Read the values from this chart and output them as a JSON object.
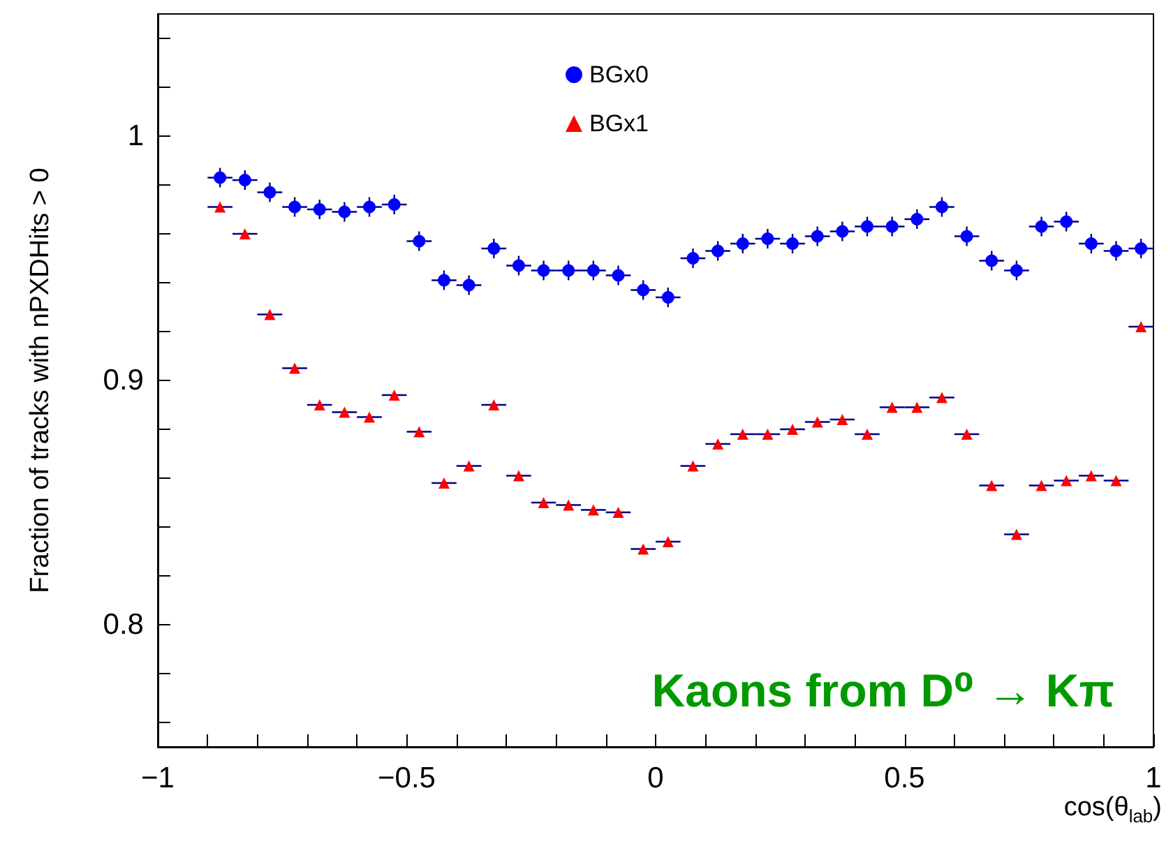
{
  "chart_data": {
    "type": "scatter",
    "xlabel": "cos(θ$_{lab}$)",
    "ylabel": "Fraction of tracks with nPXDHits > 0",
    "annotations": [
      "Kaons from D⁰ → Kπ"
    ],
    "xlim": [
      -1,
      1
    ],
    "ylim": [
      0.75,
      1.05
    ],
    "xticks": [
      -1,
      {
        "value": -0.9,
        "label": null
      },
      {
        "value": -0.8,
        "label": null
      },
      {
        "value": -0.7,
        "label": null
      },
      {
        "value": -0.6,
        "label": null
      },
      {
        "value": -0.5,
        "label": "−0.5"
      },
      {
        "value": -0.4,
        "label": null
      },
      {
        "value": -0.3,
        "label": null
      },
      {
        "value": -0.2,
        "label": null
      },
      {
        "value": -0.1,
        "label": null
      },
      0,
      {
        "value": 0.1,
        "label": null
      },
      {
        "value": 0.2,
        "label": null
      },
      {
        "value": 0.3,
        "label": null
      },
      {
        "value": 0.4,
        "label": null
      },
      0.5,
      {
        "value": 0.6,
        "label": null
      },
      {
        "value": 0.7,
        "label": null
      },
      {
        "value": 0.8,
        "label": null
      },
      {
        "value": 0.9,
        "label": null
      },
      1
    ],
    "yticks": [
      {
        "value": 0.76,
        "label": null
      },
      {
        "value": 0.78,
        "label": null
      },
      0.8,
      {
        "value": 0.82,
        "label": null
      },
      {
        "value": 0.84,
        "label": null
      },
      {
        "value": 0.86,
        "label": null
      },
      {
        "value": 0.88,
        "label": null
      },
      0.9,
      {
        "value": 0.92,
        "label": null
      },
      {
        "value": 0.94,
        "label": null
      },
      {
        "value": 0.96,
        "label": null
      },
      {
        "value": 0.98,
        "label": null
      },
      1,
      {
        "value": 1.02,
        "label": null
      },
      {
        "value": 1.04,
        "label": null
      }
    ],
    "grid": false,
    "legend": "top",
    "x": [
      -0.875,
      -0.825,
      -0.775,
      -0.725,
      -0.675,
      -0.625,
      -0.575,
      -0.525,
      -0.475,
      -0.425,
      -0.375,
      -0.325,
      -0.275,
      -0.225,
      -0.175,
      -0.125,
      -0.075,
      -0.025,
      0.025,
      0.075,
      0.125,
      0.175,
      0.225,
      0.275,
      0.325,
      0.375,
      0.425,
      0.475,
      0.525,
      0.575,
      0.625,
      0.675,
      0.725,
      0.775,
      0.825,
      0.875,
      0.925,
      0.975
    ],
    "series": [
      {
        "name": "BGx0",
        "color": "#0000ff",
        "marker": "circle",
        "values": [
          0.983,
          0.982,
          0.977,
          0.971,
          0.97,
          0.969,
          0.971,
          0.972,
          0.957,
          0.941,
          0.939,
          0.954,
          0.947,
          0.945,
          0.945,
          0.945,
          0.943,
          0.937,
          0.934,
          0.95,
          0.953,
          0.956,
          0.958,
          0.956,
          0.959,
          0.961,
          0.963,
          0.963,
          0.966,
          0.971,
          0.959,
          0.949,
          0.945,
          0.963,
          0.965,
          0.956,
          0.953,
          0.954
        ],
        "errors": [
          0.004,
          0.004,
          0.004,
          0.004,
          0.004,
          0.004,
          0.004,
          0.004,
          0.004,
          0.004,
          0.004,
          0.004,
          0.004,
          0.004,
          0.004,
          0.004,
          0.004,
          0.004,
          0.004,
          0.004,
          0.004,
          0.004,
          0.004,
          0.004,
          0.004,
          0.004,
          0.004,
          0.004,
          0.004,
          0.004,
          0.004,
          0.004,
          0.004,
          0.004,
          0.004,
          0.004,
          0.004,
          0.004
        ],
        "xerrors": [
          0.025,
          0.025,
          0.025,
          0.025,
          0.025,
          0.025,
          0.025,
          0.025,
          0.025,
          0.025,
          0.025,
          0.025,
          0.025,
          0.025,
          0.025,
          0.025,
          0.025,
          0.025,
          0.025,
          0.025,
          0.025,
          0.025,
          0.025,
          0.025,
          0.025,
          0.025,
          0.025,
          0.025,
          0.025,
          0.025,
          0.025,
          0.025,
          0.025,
          0.025,
          0.025,
          0.025,
          0.025,
          0.025
        ]
      },
      {
        "name": "BGx1",
        "color": "#ff0000",
        "marker": "triangle",
        "values": [
          0.971,
          0.96,
          0.927,
          0.905,
          0.89,
          0.887,
          0.885,
          0.894,
          0.879,
          0.858,
          0.865,
          0.89,
          0.861,
          0.85,
          0.849,
          0.847,
          0.846,
          0.831,
          0.834,
          0.865,
          0.874,
          0.878,
          0.878,
          0.88,
          0.883,
          0.884,
          0.878,
          0.889,
          0.889,
          0.893,
          0.878,
          0.857,
          0.837,
          0.857,
          0.859,
          0.861,
          0.859,
          0.922
        ],
        "xerrors": [
          0.025,
          0.025,
          0.025,
          0.025,
          0.025,
          0.025,
          0.025,
          0.025,
          0.025,
          0.025,
          0.025,
          0.025,
          0.025,
          0.025,
          0.025,
          0.025,
          0.025,
          0.025,
          0.025,
          0.025,
          0.025,
          0.025,
          0.025,
          0.025,
          0.025,
          0.025,
          0.025,
          0.025,
          0.025,
          0.025,
          0.025,
          0.025,
          0.025,
          0.025,
          0.025,
          0.025,
          0.025,
          0.025
        ]
      }
    ]
  }
}
